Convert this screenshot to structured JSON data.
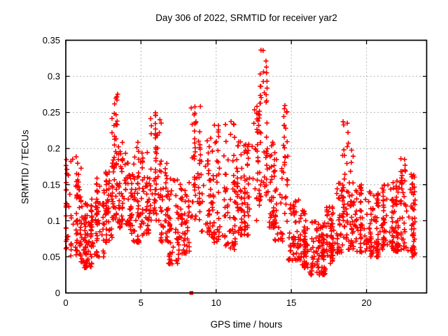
{
  "chart_data": {
    "type": "scatter",
    "title": "Day 306 of 2022, SRMTID for receiver yar2",
    "xlabel": "GPS time / hours",
    "ylabel": "SRMTID / TECUs",
    "xlim": [
      0,
      24
    ],
    "ylim": [
      0,
      0.35
    ],
    "xticks": {
      "values": [
        0,
        5,
        10,
        15,
        20
      ],
      "labels": [
        "0",
        "5",
        "10",
        "15",
        "20"
      ]
    },
    "yticks": {
      "values": [
        0,
        0.05,
        0.1,
        0.15,
        0.2,
        0.25,
        0.3,
        0.35
      ],
      "labels": [
        "0",
        "0.05",
        "0.1",
        "0.15",
        "0.2",
        "0.25",
        "0.3",
        "0.35"
      ]
    },
    "grid": true,
    "legend_position": "none",
    "marker": "plus",
    "marker_color": "#ff0000",
    "grid_color": "#b3b3b3",
    "axis_color": "#000000",
    "background_color": "#ffffff",
    "seed": 7,
    "scatter_envelope_bins": [
      [
        0.0,
        0.3,
        25,
        0.06,
        0.19,
        1.2
      ],
      [
        0.3,
        1.0,
        62,
        0.05,
        0.19,
        1.6
      ],
      [
        1.0,
        2.0,
        95,
        0.035,
        0.13,
        1.5
      ],
      [
        2.0,
        2.6,
        50,
        0.05,
        0.16,
        1.5
      ],
      [
        2.6,
        3.1,
        45,
        0.07,
        0.17,
        1.4
      ],
      [
        3.1,
        3.5,
        48,
        0.1,
        0.29,
        1.1
      ],
      [
        3.5,
        4.0,
        46,
        0.09,
        0.21,
        1.3
      ],
      [
        4.0,
        4.5,
        40,
        0.08,
        0.18,
        1.4
      ],
      [
        4.5,
        5.0,
        45,
        0.07,
        0.21,
        1.5
      ],
      [
        5.0,
        5.6,
        46,
        0.08,
        0.2,
        1.4
      ],
      [
        5.6,
        6.3,
        56,
        0.1,
        0.25,
        1.2
      ],
      [
        6.3,
        6.8,
        40,
        0.07,
        0.18,
        1.4
      ],
      [
        6.8,
        7.6,
        56,
        0.04,
        0.17,
        1.6
      ],
      [
        7.6,
        8.3,
        50,
        0.055,
        0.16,
        1.5
      ],
      [
        8.3,
        9.0,
        55,
        0.1,
        0.27,
        1.2
      ],
      [
        9.0,
        9.8,
        45,
        0.08,
        0.22,
        1.5
      ],
      [
        9.8,
        10.6,
        50,
        0.07,
        0.24,
        1.4
      ],
      [
        10.6,
        11.3,
        50,
        0.06,
        0.24,
        1.6
      ],
      [
        11.3,
        11.8,
        40,
        0.08,
        0.21,
        1.4
      ],
      [
        11.8,
        12.5,
        45,
        0.08,
        0.21,
        1.4
      ],
      [
        12.5,
        12.9,
        35,
        0.1,
        0.26,
        1.2
      ],
      [
        12.9,
        13.4,
        42,
        0.13,
        0.34,
        1.1
      ],
      [
        13.4,
        13.9,
        35,
        0.09,
        0.22,
        1.4
      ],
      [
        13.9,
        14.4,
        32,
        0.07,
        0.2,
        1.5
      ],
      [
        14.4,
        14.8,
        26,
        0.09,
        0.265,
        1.0
      ],
      [
        14.8,
        15.5,
        55,
        0.045,
        0.13,
        1.5
      ],
      [
        15.5,
        16.2,
        62,
        0.035,
        0.115,
        1.5
      ],
      [
        16.2,
        17.3,
        95,
        0.025,
        0.1,
        1.5
      ],
      [
        17.3,
        18.0,
        60,
        0.04,
        0.12,
        1.5
      ],
      [
        18.0,
        18.4,
        34,
        0.055,
        0.16,
        1.4
      ],
      [
        18.4,
        18.8,
        36,
        0.07,
        0.24,
        1.3
      ],
      [
        18.8,
        19.3,
        36,
        0.06,
        0.21,
        1.5
      ],
      [
        19.3,
        20.0,
        50,
        0.055,
        0.15,
        1.5
      ],
      [
        20.0,
        21.0,
        82,
        0.05,
        0.14,
        1.5
      ],
      [
        21.0,
        21.8,
        66,
        0.06,
        0.15,
        1.4
      ],
      [
        21.8,
        22.3,
        46,
        0.055,
        0.16,
        1.4
      ],
      [
        22.3,
        22.7,
        36,
        0.06,
        0.19,
        1.3
      ],
      [
        22.7,
        23.2,
        52,
        0.05,
        0.165,
        1.4
      ]
    ],
    "special_points": [
      {
        "x": 8.35,
        "y": 0,
        "marker": "filled-square",
        "color": "#ff0000"
      }
    ]
  }
}
